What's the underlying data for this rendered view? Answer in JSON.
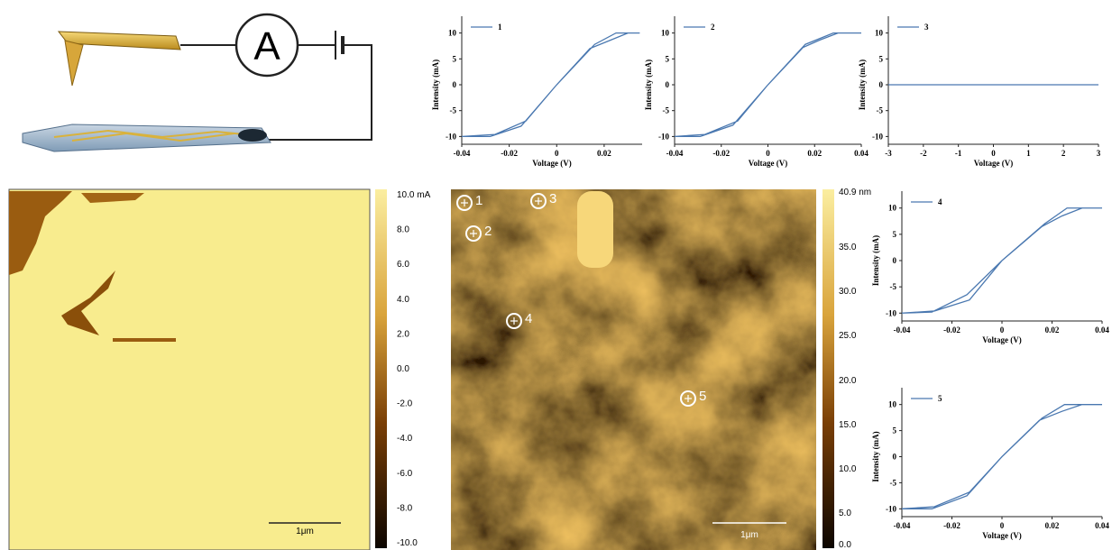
{
  "schematic": {
    "ammeter": "A"
  },
  "chart_data": [
    {
      "type": "line",
      "xlabel": "Voltage (V)",
      "ylabel": "Intensity (mA)",
      "xlim": [
        -0.04,
        0.036
      ],
      "ylim": [
        -11.5,
        11.5
      ],
      "xticks": [
        -0.04,
        -0.02,
        0,
        0.02
      ],
      "yticks": [
        -10,
        -5,
        0,
        5,
        10
      ],
      "x": [
        -0.04,
        -0.028,
        -0.015,
        0,
        0.014,
        0.022,
        0.03,
        0.035,
        0.025,
        0.016,
        0,
        -0.013,
        -0.026,
        -0.04
      ],
      "series": [
        {
          "name": "1",
          "color": "#4a78b0",
          "values": [
            -10,
            -10,
            -8,
            0,
            7,
            8.5,
            10,
            10,
            10,
            7.8,
            0,
            -7,
            -9.6,
            -10
          ]
        }
      ]
    },
    {
      "type": "line",
      "xlabel": "Voltage (V)",
      "ylabel": "Intensity (mA)",
      "xlim": [
        -0.04,
        0.04
      ],
      "ylim": [
        -11.5,
        11.5
      ],
      "xticks": [
        -0.04,
        -0.02,
        0,
        0.02,
        0.04
      ],
      "yticks": [
        -10,
        -5,
        0,
        5,
        10
      ],
      "x": [
        -0.04,
        -0.029,
        -0.015,
        0,
        0.015,
        0.022,
        0.03,
        0.04,
        0.028,
        0.016,
        0,
        -0.013,
        -0.027,
        -0.04
      ],
      "series": [
        {
          "name": "2",
          "color": "#4a78b0",
          "values": [
            -10,
            -10,
            -7.8,
            0,
            7.2,
            8.6,
            10,
            10,
            10,
            7.8,
            0,
            -7,
            -9.6,
            -10
          ]
        }
      ]
    },
    {
      "type": "line",
      "xlabel": "Voltage (V)",
      "ylabel": "Intensity (mA)",
      "xlim": [
        -3,
        3
      ],
      "ylim": [
        -11.5,
        11.5
      ],
      "xticks": [
        -3,
        -2,
        -1,
        0,
        1,
        2,
        3
      ],
      "yticks": [
        -10,
        -5,
        0,
        5,
        10
      ],
      "x": [
        -3,
        3
      ],
      "series": [
        {
          "name": "3",
          "color": "#4a78b0",
          "values": [
            0,
            0
          ]
        }
      ]
    },
    {
      "type": "line",
      "xlabel": "Voltage (V)",
      "ylabel": "Intensity (mA)",
      "xlim": [
        -0.04,
        0.04
      ],
      "ylim": [
        -11.5,
        11.5
      ],
      "xticks": [
        -0.04,
        -0.02,
        0,
        0.02,
        0.04
      ],
      "yticks": [
        -10,
        -5,
        0,
        5,
        10
      ],
      "x": [
        -0.04,
        -0.028,
        -0.014,
        0,
        0.016,
        0.024,
        0.032,
        0.04,
        0.026,
        0.017,
        0,
        -0.013,
        -0.027,
        -0.04
      ],
      "series": [
        {
          "name": "4",
          "color": "#4a78b0",
          "values": [
            -10,
            -9.8,
            -6.5,
            0,
            6.5,
            8.5,
            10,
            10,
            10,
            7,
            0,
            -7.5,
            -9.6,
            -10
          ]
        }
      ]
    },
    {
      "type": "line",
      "xlabel": "Voltage (V)",
      "ylabel": "Intensity (mA)",
      "xlim": [
        -0.04,
        0.04
      ],
      "ylim": [
        -11.5,
        11.5
      ],
      "xticks": [
        -0.04,
        -0.02,
        0,
        0.02,
        0.04
      ],
      "yticks": [
        -10,
        -5,
        0,
        5,
        10
      ],
      "x": [
        -0.04,
        -0.028,
        -0.014,
        0,
        0.015,
        0.024,
        0.032,
        0.04,
        0.025,
        0.016,
        0,
        -0.013,
        -0.027,
        -0.04
      ],
      "series": [
        {
          "name": "5",
          "color": "#4a78b0",
          "values": [
            -10,
            -10,
            -7.5,
            0,
            7,
            8.7,
            10,
            10,
            10,
            7.4,
            0,
            -6.8,
            -9.6,
            -10
          ]
        }
      ]
    }
  ],
  "current_map": {
    "colorbar_labels": [
      "10.0 mA",
      "8.0",
      "6.0",
      "4.0",
      "2.0",
      "0.0",
      "-2.0",
      "-4.0",
      "-6.0",
      "-8.0",
      "-10.0"
    ],
    "scale_bar": "1μm"
  },
  "topography_map": {
    "colorbar_labels": [
      "40.9 nm",
      "35.0",
      "30.0",
      "25.0",
      "20.0",
      "15.0",
      "10.0",
      "5.0",
      "0.0"
    ],
    "scale_bar": "1μm",
    "markers": [
      "1",
      "2",
      "3",
      "4",
      "5"
    ]
  }
}
